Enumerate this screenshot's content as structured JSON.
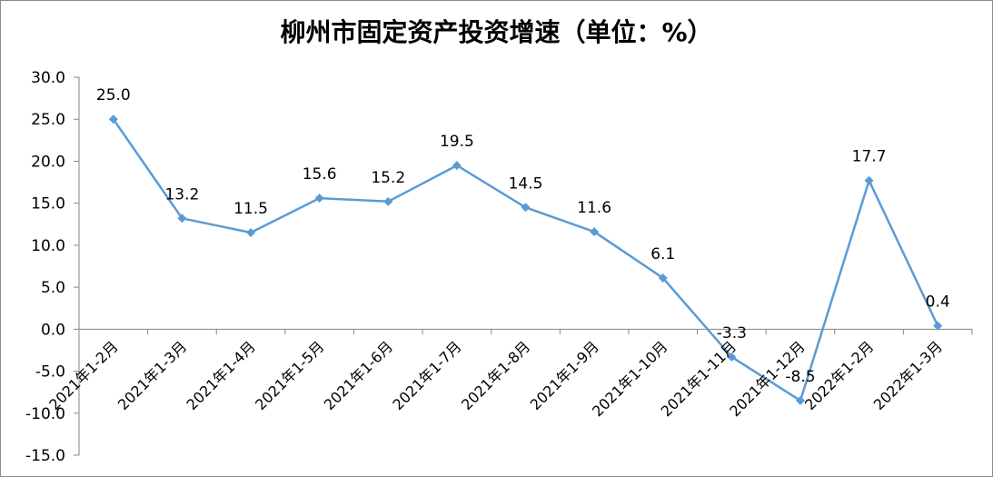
{
  "chart_data": {
    "type": "line",
    "title": "柳州市固定资产投资增速（单位：%）",
    "categories": [
      "2021年1-2月",
      "2021年1-3月",
      "2021年1-4月",
      "2021年1-5月",
      "2021年1-6月",
      "2021年1-7月",
      "2021年1-8月",
      "2021年1-9月",
      "2021年1-10月",
      "2021年1-11月",
      "2021年1-12月",
      "2022年1-2月",
      "2022年1-3月"
    ],
    "values": [
      25.0,
      13.2,
      11.5,
      15.6,
      15.2,
      19.5,
      14.5,
      11.6,
      6.1,
      -3.3,
      -8.5,
      17.7,
      0.4
    ],
    "data_labels": [
      "25.0",
      "13.2",
      "11.5",
      "15.6",
      "15.2",
      "19.5",
      "14.5",
      "11.6",
      "6.1",
      "-3.3",
      "-8.5",
      "17.7",
      "0.4"
    ],
    "y_ticks": [
      "30.0",
      "25.0",
      "20.0",
      "15.0",
      "10.0",
      "5.0",
      "0.0",
      "-5.0",
      "-10.0",
      "-15.0"
    ],
    "ylim": [
      -15,
      30
    ],
    "xlabel": "",
    "ylabel": "",
    "grid": false,
    "legend": "none",
    "line_color": "#5b9bd5",
    "axis_color": "#868686"
  }
}
